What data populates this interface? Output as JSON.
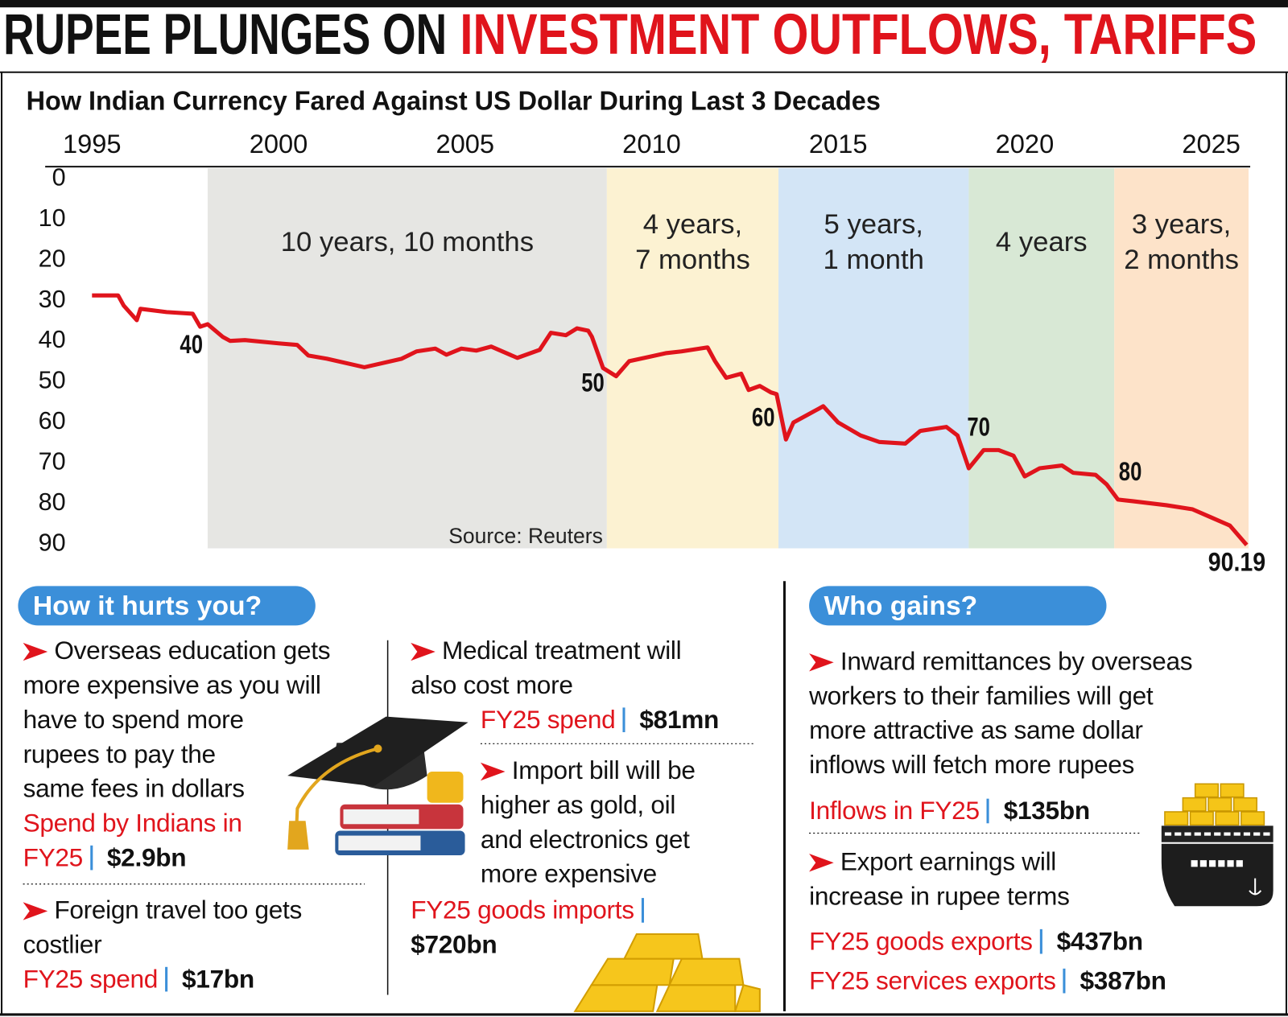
{
  "headline": {
    "black": "RUPEE PLUNGES ON",
    "red": "INVESTMENT OUTFLOWS, TARIFFS"
  },
  "chart_data": {
    "type": "line",
    "title": "How Indian Currency Fared Against US Dollar During Last 3 Decades",
    "x": [
      1995.0,
      1995.7,
      1995.85,
      1996.2,
      1996.3,
      1997.0,
      1997.7,
      1997.9,
      1998.1,
      1998.5,
      1998.7,
      1999.1,
      2000.0,
      2000.5,
      2000.8,
      2001.3,
      2002.3,
      2003.3,
      2003.7,
      2004.2,
      2004.5,
      2004.9,
      2005.3,
      2005.7,
      2006.4,
      2007.0,
      2007.3,
      2007.7,
      2008.0,
      2008.3,
      2008.4,
      2008.7,
      2009.05,
      2009.4,
      2009.9,
      2010.4,
      2010.8,
      2011.5,
      2011.7,
      2012.0,
      2012.4,
      2012.6,
      2012.9,
      2013.2,
      2013.35,
      2013.6,
      2013.8,
      2014.2,
      2014.6,
      2015.0,
      2015.6,
      2016.1,
      2016.8,
      2017.2,
      2017.9,
      2018.2,
      2018.5,
      2018.9,
      2019.3,
      2019.7,
      2020.0,
      2020.4,
      2021.0,
      2021.3,
      2021.9,
      2022.2,
      2022.5,
      2022.9,
      2023.8,
      2024.5,
      2025.0,
      2025.5,
      2025.95
    ],
    "values": [
      28.7,
      28.7,
      31.2,
      34.8,
      32,
      32.8,
      33.2,
      36.4,
      35.8,
      38.9,
      39.9,
      39.7,
      40.5,
      40.9,
      43.5,
      44.3,
      46.4,
      44.3,
      42.5,
      41.8,
      43.3,
      41.8,
      42.3,
      41.3,
      44.1,
      42.1,
      37.9,
      38.5,
      36.8,
      37.4,
      38.9,
      46.6,
      48.6,
      44.9,
      43.9,
      42.9,
      42.5,
      41.5,
      44.9,
      49,
      48,
      52,
      51,
      52.6,
      53,
      64.2,
      60,
      58,
      56,
      60,
      63.2,
      64.8,
      65.2,
      62.1,
      61.1,
      63.2,
      71.3,
      66.8,
      66.8,
      68.2,
      73.3,
      71.3,
      70.6,
      72.4,
      72.9,
      75.3,
      79,
      79.4,
      80.4,
      81.4,
      83.4,
      85.4,
      90.19
    ],
    "color": "#e0141c",
    "xlim": [
      1995,
      2026
    ],
    "xticks": [
      1995,
      2000,
      2005,
      2010,
      2015,
      2020,
      2025
    ],
    "ylim": [
      0,
      90
    ],
    "yticks": [
      0,
      10,
      20,
      30,
      40,
      50,
      60,
      70,
      80,
      90
    ],
    "y_inverted": true,
    "periods": [
      {
        "start": 1998.1,
        "end": 2008.8,
        "label": [
          "10 years, 10 months"
        ],
        "color": "#e6e6e3"
      },
      {
        "start": 2008.8,
        "end": 2013.4,
        "label": [
          "4 years,",
          "7 months"
        ],
        "color": "#fcf2d2"
      },
      {
        "start": 2013.4,
        "end": 2018.5,
        "label": [
          "5 years,",
          "1 month"
        ],
        "color": "#d3e5f6"
      },
      {
        "start": 2018.5,
        "end": 2022.4,
        "label": [
          "4 years"
        ],
        "color": "#d8e8d5"
      },
      {
        "start": 2022.4,
        "end": 2026,
        "label": [
          "3 years,",
          "2 months"
        ],
        "color": "#fde3c9"
      }
    ],
    "milestones": [
      {
        "x": 1998.5,
        "value": 40
      },
      {
        "x": 2008.8,
        "value": 50
      },
      {
        "x": 2013.5,
        "value": 60
      },
      {
        "x": 2018.5,
        "value": 70
      },
      {
        "x": 2022.5,
        "value": 80
      },
      {
        "x": 2025.95,
        "value": 90.19
      }
    ],
    "source": "Source: Reuters"
  },
  "hurts": {
    "title": "How it hurts you?",
    "items": [
      {
        "lines": [
          "Overseas education gets",
          "more expensive as you will",
          "have to spend more",
          "rupees to pay the",
          "same fees in dollars"
        ],
        "stats": [
          {
            "label": "Spend by Indians in FY25",
            "value": "$2.9bn"
          }
        ]
      },
      {
        "lines": [
          "Foreign travel too gets",
          "costlier"
        ],
        "stats": [
          {
            "label": "FY25 spend",
            "value": "$17bn"
          }
        ]
      },
      {
        "lines": [
          "Medical treatment will",
          "also cost more"
        ],
        "stats": [
          {
            "label": "FY25 spend",
            "value": "$81mn"
          }
        ]
      },
      {
        "lines": [
          "Import bill will be",
          "higher as gold, oil",
          "and electronics get",
          "more expensive"
        ],
        "stats": [
          {
            "label": "FY25 goods imports",
            "value": "$720bn"
          }
        ]
      }
    ]
  },
  "gains": {
    "title": "Who gains?",
    "items": [
      {
        "lines": [
          "Inward remittances by overseas",
          "workers to their families will get",
          "more attractive as same dollar",
          "inflows will fetch more rupees"
        ],
        "stats": [
          {
            "label": "Inflows in FY25",
            "value": "$135bn"
          }
        ]
      },
      {
        "lines": [
          "Export earnings will",
          "increase in rupee terms"
        ],
        "stats": [
          {
            "label": "FY25 goods exports",
            "value": "$437bn"
          },
          {
            "label": "FY25 services exports",
            "value": "$387bn"
          }
        ]
      }
    ]
  }
}
